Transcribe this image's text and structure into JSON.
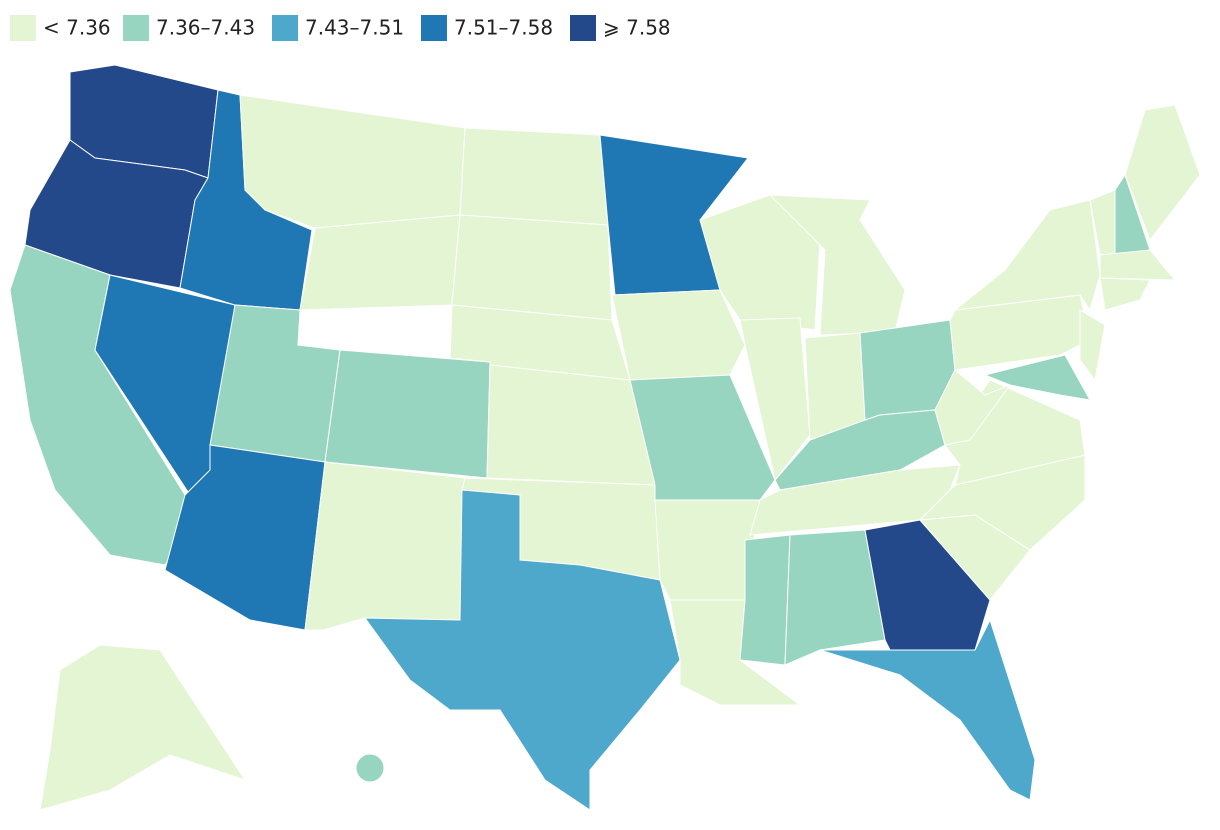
{
  "legend": [
    {
      "label": "< 7.36",
      "color": "#e3f5d2"
    },
    {
      "label": "7.36–7.43",
      "color": "#98d5c0"
    },
    {
      "label": "7.43–7.51",
      "color": "#4da8cb"
    },
    {
      "label": "7.51–7.58",
      "color": "#1f78b4"
    },
    {
      "label": "⩾ 7.58",
      "color": "#24498a"
    }
  ],
  "regions": [
    {
      "bin": 4
    },
    {
      "bin": 4
    },
    {
      "bin": 1
    },
    {
      "bin": 3
    },
    {
      "bin": 3
    },
    {
      "bin": 0
    },
    {
      "bin": 0
    },
    {
      "bin": 1
    },
    {
      "bin": 1
    },
    {
      "bin": 3
    },
    {
      "bin": 0
    },
    {
      "bin": 0
    },
    {
      "bin": 0
    },
    {
      "bin": 0
    },
    {
      "bin": 0
    },
    {
      "bin": 0
    },
    {
      "bin": 2
    },
    {
      "bin": 3
    },
    {
      "bin": 0
    },
    {
      "bin": 1
    },
    {
      "bin": 0
    },
    {
      "bin": 0
    },
    {
      "bin": 0
    },
    {
      "bin": 0
    },
    {
      "bin": 0
    },
    {
      "bin": 0
    },
    {
      "bin": 1
    },
    {
      "bin": 1
    },
    {
      "bin": 0
    },
    {
      "bin": 1
    },
    {
      "bin": 1
    },
    {
      "bin": 4
    },
    {
      "bin": 2
    },
    {
      "bin": 0
    },
    {
      "bin": 0
    },
    {
      "bin": 0
    },
    {
      "bin": 0
    },
    {
      "bin": 0
    },
    {
      "bin": 1
    },
    {
      "bin": 0
    },
    {
      "bin": 0
    },
    {
      "bin": 0
    },
    {
      "bin": 1
    },
    {
      "bin": 0
    },
    {
      "bin": 0
    },
    {
      "bin": 0
    },
    {
      "bin": 0
    },
    {
      "bin": 1
    }
  ]
}
